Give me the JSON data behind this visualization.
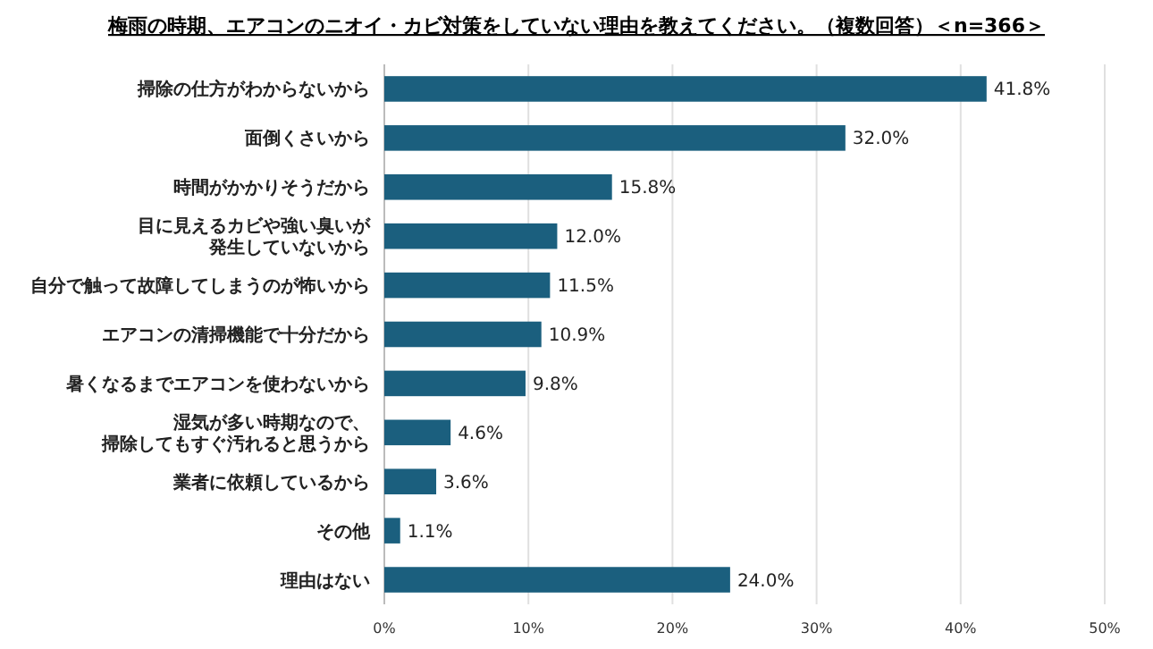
{
  "chart_data": {
    "type": "bar",
    "orientation": "horizontal",
    "title": "梅雨の時期、エアコンのニオイ・カビ対策をしていない理由を教えてください。（複数回答）＜n=366＞",
    "categories": [
      "掃除の仕方がわからないから",
      "面倒くさいから",
      "時間がかかりそうだから",
      "目に見えるカビや強い臭いが発生していないから",
      "自分で触って故障してしまうのが怖いから",
      "エアコンの清掃機能で十分だから",
      "暑くなるまでエアコンを使わないから",
      "湿気が多い時期なので、掃除してもすぐ汚れると思うから",
      "業者に依頼しているから",
      "その他",
      "理由はない"
    ],
    "values": [
      41.8,
      32.0,
      15.8,
      12.0,
      11.5,
      10.9,
      9.8,
      4.6,
      3.6,
      1.1,
      24.0
    ],
    "value_labels": [
      "41.8%",
      "32.0%",
      "15.8%",
      "12.0%",
      "11.5%",
      "10.9%",
      "9.8%",
      "4.6%",
      "3.6%",
      "1.1%",
      "24.0%"
    ],
    "color": "#1b5f7e",
    "xlim": [
      0,
      50
    ],
    "xticks": [
      {
        "value": 0,
        "label": "0%"
      },
      {
        "value": 10,
        "label": "10%"
      },
      {
        "value": 20,
        "label": "20%"
      },
      {
        "value": 30,
        "label": "30%"
      },
      {
        "value": 40,
        "label": "40%"
      },
      {
        "value": 50,
        "label": "50%"
      }
    ],
    "grid": "x"
  }
}
